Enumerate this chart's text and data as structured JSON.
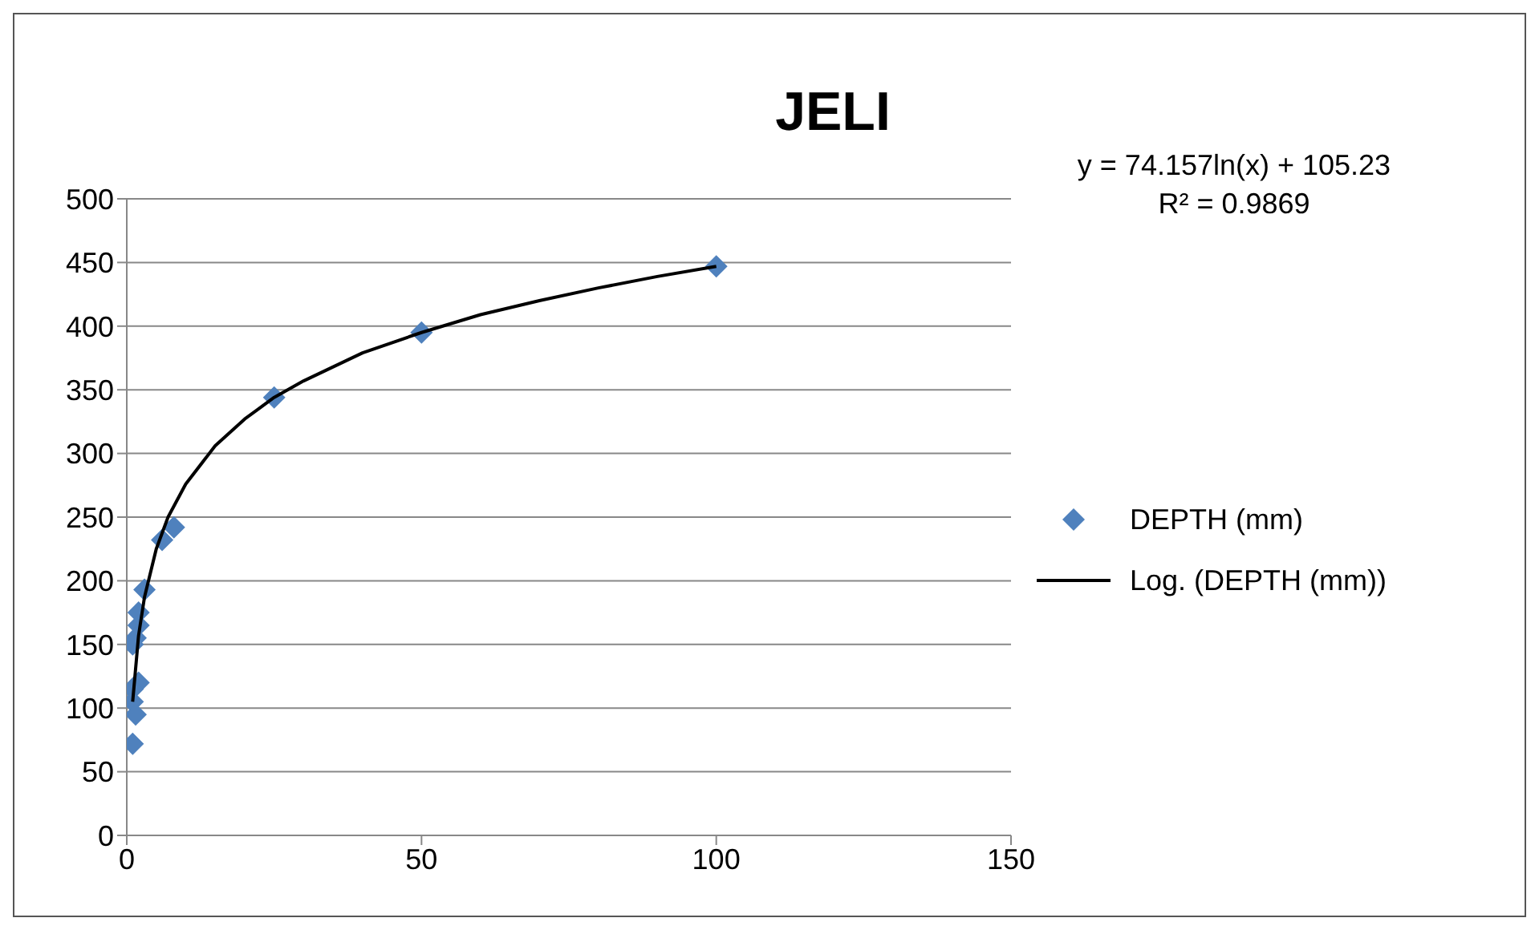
{
  "chart_data": {
    "type": "scatter",
    "title": "JELI",
    "series": [
      {
        "name": "DEPTH (mm)",
        "type": "scatter",
        "color": "#4f81bd",
        "marker": "diamond",
        "x": [
          100,
          50,
          25,
          8,
          6,
          3,
          2,
          2,
          1.5,
          1,
          2,
          1,
          1,
          1.5,
          1
        ],
        "values": [
          447,
          395,
          344,
          242,
          232,
          193,
          175,
          165,
          155,
          150,
          120,
          115,
          105,
          95,
          72
        ]
      },
      {
        "name": "Log. (DEPTH (mm))",
        "type": "line",
        "color": "#000000",
        "marker": "none",
        "line_style": "solid",
        "x": [
          1,
          2,
          3,
          5,
          7,
          10,
          15,
          20,
          25,
          30,
          40,
          50,
          60,
          70,
          80,
          90,
          100
        ],
        "values": [
          105,
          157,
          187,
          225,
          250,
          276,
          306,
          327,
          344,
          357,
          379,
          395,
          409,
          420,
          430,
          439,
          447
        ]
      }
    ],
    "annotations": [
      "y = 74.157ln(x) + 105.23",
      "R² = 0.9869"
    ],
    "xlim": [
      0,
      150
    ],
    "xticks": [
      0,
      50,
      100,
      150
    ],
    "ylim": [
      0,
      500
    ],
    "yticks": [
      0,
      50,
      100,
      150,
      200,
      250,
      300,
      350,
      400,
      450,
      500
    ],
    "grid": "y",
    "legend": "right"
  }
}
